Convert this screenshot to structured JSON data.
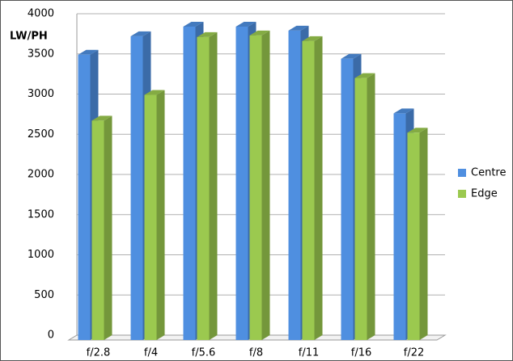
{
  "chart_data": {
    "type": "bar3d",
    "y_label": "LW/PH",
    "categories": [
      "f/2.8",
      "f/4",
      "f/5.6",
      "f/8",
      "f/11",
      "f/16",
      "f/22"
    ],
    "series": [
      {
        "name": "Centre",
        "color": "#4f8fe0",
        "values": [
          3550,
          3780,
          3900,
          3900,
          3850,
          3500,
          2820
        ]
      },
      {
        "name": "Edge",
        "color": "#9bc94f",
        "values": [
          2730,
          3050,
          3770,
          3790,
          3720,
          3260,
          2580
        ]
      }
    ],
    "ylim": [
      0,
      4000
    ],
    "yticks": [
      0,
      500,
      1000,
      1500,
      2000,
      2500,
      3000,
      3500,
      4000
    ],
    "grid": true,
    "legend": "right"
  }
}
